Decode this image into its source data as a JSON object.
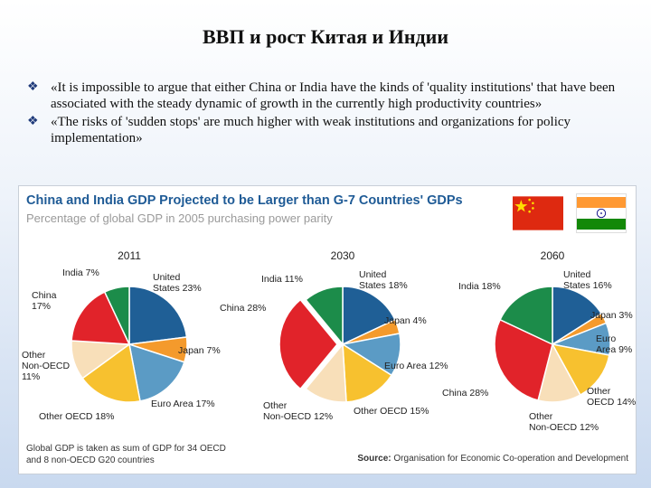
{
  "slide": {
    "title": "ВВП и рост Китая и Индии",
    "bullets": [
      "«It is impossible to argue that either China or India have the kinds of 'quality institutions' that have been associated with the steady dynamic of growth in the currently high productivity countries»",
      "«The risks of 'sudden stops' are much higher with weak institutions and organizations for policy implementation»"
    ],
    "bullet_icon": "diamond-bullet-icon"
  },
  "colors": {
    "US": "#1f5f96",
    "Japan": "#f49a2c",
    "Euro": "#5b9bc5",
    "OtherOECD": "#f7c12f",
    "OtherNonOECD": "#f8dfb9",
    "China": "#e1232a",
    "India": "#1c8c4a"
  },
  "chart_data": {
    "type": "pie",
    "title": "China and India GDP Projected to be Larger than G-7 Countries' GDPs",
    "subtitle": "Percentage of global GDP in 2005 purchasing power parity",
    "footnote": "Global GDP is taken as sum of GDP for 34 OECD and 8 non-OECD G20 countries",
    "source_label": "Source:",
    "source_text": "Organisation for Economic Co-operation and Development",
    "pies": [
      {
        "year": "2011",
        "slices": [
          {
            "key": "US",
            "value": 23,
            "label": "United States 23%"
          },
          {
            "key": "Japan",
            "value": 7,
            "label": "Japan 7%"
          },
          {
            "key": "Euro",
            "value": 17,
            "label": "Euro Area 17%"
          },
          {
            "key": "OtherOECD",
            "value": 18,
            "label": "Other OECD 18%"
          },
          {
            "key": "OtherNonOECD",
            "value": 11,
            "label": "Other Non-OECD 11%"
          },
          {
            "key": "China",
            "value": 17,
            "label": "China 17%"
          },
          {
            "key": "India",
            "value": 7,
            "label": "India 7%"
          }
        ]
      },
      {
        "year": "2030",
        "slices": [
          {
            "key": "US",
            "value": 18,
            "label": "United States 18%"
          },
          {
            "key": "Japan",
            "value": 4,
            "label": "Japan 4%"
          },
          {
            "key": "Euro",
            "value": 12,
            "label": "Euro Area 12%"
          },
          {
            "key": "OtherOECD",
            "value": 15,
            "label": "Other OECD 15%"
          },
          {
            "key": "OtherNonOECD",
            "value": 12,
            "label": "Other Non-OECD 12%"
          },
          {
            "key": "China",
            "value": 28,
            "label": "China 28%"
          },
          {
            "key": "India",
            "value": 11,
            "label": "India 11%"
          }
        ]
      },
      {
        "year": "2060",
        "slices": [
          {
            "key": "US",
            "value": 16,
            "label": "United States 16%"
          },
          {
            "key": "Japan",
            "value": 3,
            "label": "Japan 3%"
          },
          {
            "key": "Euro",
            "value": 9,
            "label": "Euro Area 9%"
          },
          {
            "key": "OtherOECD",
            "value": 14,
            "label": "Other OECD 14%"
          },
          {
            "key": "OtherNonOECD",
            "value": 12,
            "label": "Other Non-OECD 12%"
          },
          {
            "key": "China",
            "value": 28,
            "label": "China 28%"
          },
          {
            "key": "India",
            "value": 18,
            "label": "India 18%"
          }
        ]
      }
    ]
  }
}
